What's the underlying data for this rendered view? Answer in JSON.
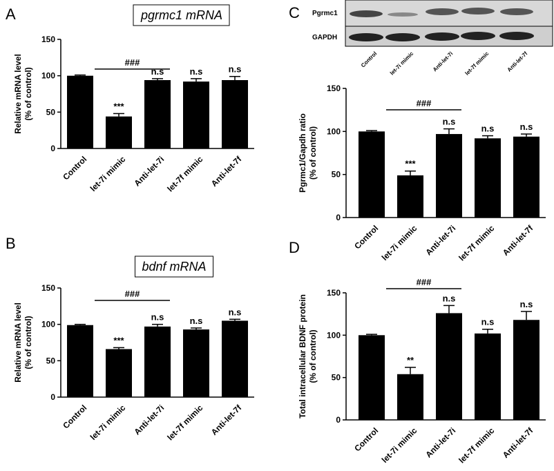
{
  "chart_data": [
    {
      "type": "bar",
      "panel": "A",
      "title": "pgrmc1 mRNA",
      "ylabel": [
        "Relative mRNA level",
        "(% of control)"
      ],
      "categories": [
        "Control",
        "let-7i mimic",
        "Anti-let-7i",
        "let-7f mimic",
        "Anti-let-7f"
      ],
      "values": [
        100,
        44,
        94,
        92,
        94
      ],
      "errors": [
        1,
        4,
        2,
        4,
        5
      ],
      "annotations": [
        null,
        "***",
        "n.s",
        "n.s",
        "n.s"
      ],
      "bracket_label": "###",
      "ylim": [
        0,
        150
      ],
      "yticks": [
        0,
        50,
        100,
        150
      ],
      "color": "#000000"
    },
    {
      "type": "bar",
      "panel": "B",
      "title": "bdnf mRNA",
      "ylabel": [
        "Relative mRNA level",
        "(% of control)"
      ],
      "categories": [
        "Control",
        "let-7i mimic",
        "Anti-let-7i",
        "let-7f mimic",
        "Anti-let-7f"
      ],
      "values": [
        99,
        66,
        97,
        93,
        105
      ],
      "errors": [
        1,
        2,
        3,
        2,
        2
      ],
      "annotations": [
        null,
        "***",
        "n.s",
        "n.s",
        "n.s"
      ],
      "bracket_label": "###",
      "ylim": [
        0,
        150
      ],
      "yticks": [
        0,
        50,
        100,
        150
      ],
      "color": "#000000"
    },
    {
      "type": "bar",
      "panel": "C",
      "ylabel": [
        "Pgrmc1/Gapdh ratio",
        "(% of control)"
      ],
      "blot_rows": [
        "Pgrmc1",
        "GAPDH"
      ],
      "categories": [
        "Control",
        "let-7i mimic",
        "Anti-let-7i",
        "let-7f mimic",
        "Anti-let-7f"
      ],
      "values": [
        100,
        49,
        97,
        92,
        94
      ],
      "errors": [
        1,
        5,
        6,
        3,
        3
      ],
      "annotations": [
        null,
        "***",
        "n.s",
        "n.s",
        "n.s"
      ],
      "bracket_label": "###",
      "ylim": [
        0,
        150
      ],
      "yticks": [
        0,
        50,
        100,
        150
      ],
      "color": "#000000"
    },
    {
      "type": "bar",
      "panel": "D",
      "ylabel": [
        "Total intracellular BDNF protein",
        "(% of control)"
      ],
      "categories": [
        "Control",
        "let-7i mimic",
        "Anti-let-7i",
        "let-7f mimic",
        "Anti-let-7f"
      ],
      "values": [
        100,
        54,
        126,
        102,
        118
      ],
      "errors": [
        1,
        8,
        9,
        5,
        10
      ],
      "annotations": [
        null,
        "**",
        "n.s",
        "n.s",
        "n.s"
      ],
      "bracket_label": "###",
      "ylim": [
        0,
        150
      ],
      "yticks": [
        0,
        50,
        100,
        150
      ],
      "color": "#000000"
    }
  ]
}
